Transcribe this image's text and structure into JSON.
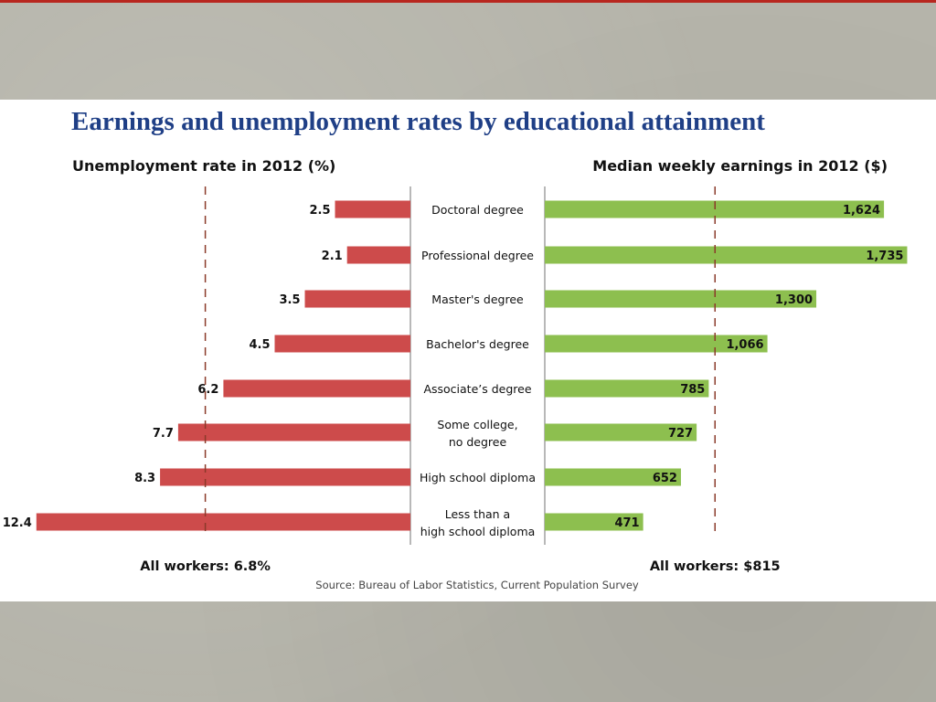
{
  "chart_data": {
    "type": "bar",
    "title": "Earnings and unemployment rates by educational attainment",
    "categories": [
      "Doctoral degree",
      "Professional degree",
      "Master's degree",
      "Bachelor's degree",
      "Associate’s degree",
      "Some college, no degree",
      "High school diploma",
      "Less than a high school diploma"
    ],
    "category_lines": [
      [
        "Doctoral degree"
      ],
      [
        "Professional degree"
      ],
      [
        "Master's degree"
      ],
      [
        "Bachelor's degree"
      ],
      [
        "Associate’s degree"
      ],
      [
        "Some college,",
        "no degree"
      ],
      [
        "High school diploma"
      ],
      [
        "Less than a",
        "high school diploma"
      ]
    ],
    "series": [
      {
        "name": "Unemployment rate in 2012 (%)",
        "values": [
          2.5,
          2.1,
          3.5,
          4.5,
          6.2,
          7.7,
          8.3,
          12.4
        ],
        "labels": [
          "2.5",
          "2.1",
          "3.5",
          "4.5",
          "6.2",
          "7.7",
          "8.3",
          "12.4"
        ],
        "color": "#cd4b4b",
        "reference_value": 6.8,
        "reference_label": "All workers: 6.8%"
      },
      {
        "name": "Median weekly earnings in 2012 ($)",
        "values": [
          1624,
          1735,
          1300,
          1066,
          785,
          727,
          652,
          471
        ],
        "labels": [
          "1,624",
          "1,735",
          "1,300",
          "1,066",
          "785",
          "727",
          "652",
          "471"
        ],
        "color": "#8dbf4f",
        "reference_value": 815,
        "reference_label": "All workers: $815"
      }
    ],
    "source": "Source: Bureau of Labor Statistics, Current Population Survey",
    "legend": "none",
    "grid": false
  }
}
